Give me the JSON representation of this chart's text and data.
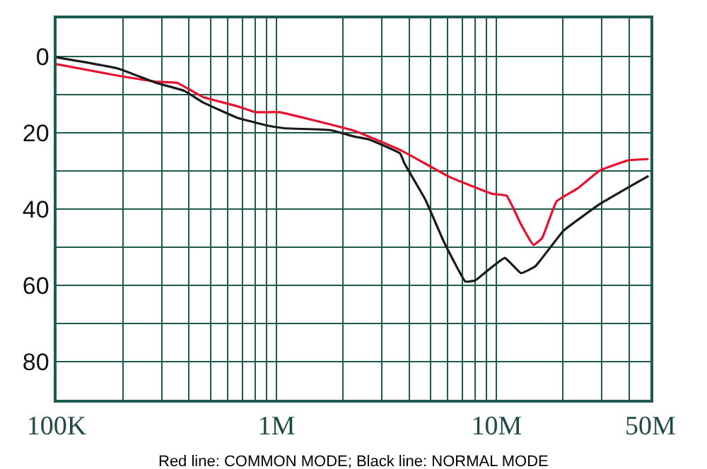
{
  "chart_data": {
    "type": "line",
    "log": "x",
    "grid": true,
    "legend": false,
    "marker": "none",
    "line_style": "solid",
    "xlim": [
      100000,
      50000000
    ],
    "xticks": [
      {
        "value": 100000,
        "label": "100K"
      },
      {
        "value": 1000000,
        "label": "1M"
      },
      {
        "value": 10000000,
        "label": "10M"
      },
      {
        "value": 50000000,
        "label": "50M"
      }
    ],
    "ylim": [
      90,
      -10
    ],
    "yticks": [
      0,
      20,
      40,
      60,
      80
    ],
    "annotations": [
      "Red line: COMMON MODE; Black line: NORMAL MODE"
    ],
    "series": [
      {
        "color": "#e8112d",
        "x": [
          100000,
          189000,
          283000,
          353000,
          462000,
          659000,
          800000,
          1030000,
          2260000,
          3700000,
          6120000,
          9570000,
          11100000,
          12900000,
          14700000,
          16100000,
          18700000,
          23300000,
          29600000,
          39800000,
          49000000
        ],
        "values": [
          2,
          5,
          6.6,
          6.9,
          10.6,
          13,
          14.6,
          14.6,
          19.5,
          24.7,
          31.6,
          36,
          36.5,
          44,
          49.4,
          47.6,
          38,
          34.6,
          29.8,
          27.2,
          26.9
        ]
      },
      {
        "color": "#1a1a1a",
        "x": [
          100000,
          189000,
          283000,
          381000,
          462000,
          659000,
          890000,
          1080000,
          1760000,
          2260000,
          2620000,
          3640000,
          3810000,
          4750000,
          5770000,
          7210000,
          8000000,
          9290000,
          10900000,
          12900000,
          15000000,
          20100000,
          29600000,
          49000000
        ],
        "values": [
          0.2,
          3.1,
          6.9,
          9,
          12,
          16,
          18,
          18.8,
          19.3,
          21,
          21.7,
          25.4,
          28,
          37.6,
          48.7,
          59,
          58.7,
          55.7,
          52.8,
          56.8,
          55,
          45.7,
          38.6,
          31.3
        ]
      }
    ]
  }
}
